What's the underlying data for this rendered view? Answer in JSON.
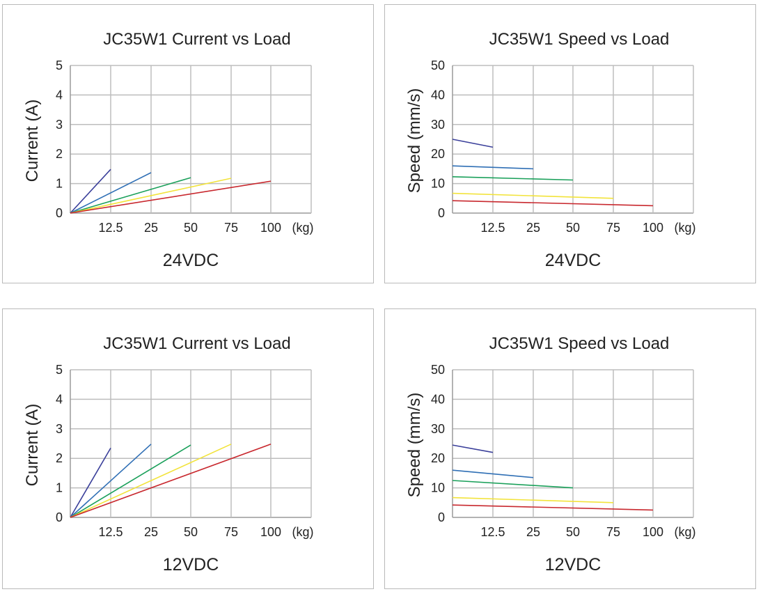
{
  "chart_data": [
    {
      "type": "line",
      "title": "JC35W1 Current vs Load",
      "subtitle": "24VDC",
      "ylabel": "Current (A)",
      "xlabel": "",
      "unit_label": "(kg)",
      "x_tick_labels": [
        "12.5",
        "25",
        "50",
        "75",
        "100"
      ],
      "y_ticks": [
        0,
        1,
        2,
        3,
        4,
        5
      ],
      "ylim": [
        0,
        5
      ],
      "series": [
        {
          "name": "12.5 kg",
          "color": "#3a3f9a",
          "x": [
            0,
            12.5
          ],
          "y": [
            0,
            1.48
          ]
        },
        {
          "name": "25 kg",
          "color": "#2f6fb5",
          "x": [
            0,
            25
          ],
          "y": [
            0,
            1.37
          ]
        },
        {
          "name": "50 kg",
          "color": "#1aa05a",
          "x": [
            0,
            50
          ],
          "y": [
            0,
            1.2
          ]
        },
        {
          "name": "75 kg",
          "color": "#f2e33a",
          "x": [
            0,
            75
          ],
          "y": [
            0,
            1.18
          ]
        },
        {
          "name": "100 kg",
          "color": "#c8282e",
          "x": [
            0,
            100
          ],
          "y": [
            0,
            1.08
          ]
        }
      ]
    },
    {
      "type": "line",
      "title": "JC35W1 Speed vs Load",
      "subtitle": "24VDC",
      "ylabel": "Speed (mm/s)",
      "xlabel": "",
      "unit_label": "(kg)",
      "x_tick_labels": [
        "12.5",
        "25",
        "50",
        "75",
        "100"
      ],
      "y_ticks": [
        0,
        10,
        20,
        30,
        40,
        50
      ],
      "ylim": [
        0,
        50
      ],
      "series": [
        {
          "name": "12.5 kg",
          "color": "#3a3f9a",
          "x": [
            0,
            12.5
          ],
          "y": [
            25,
            22.3
          ]
        },
        {
          "name": "25 kg",
          "color": "#2f6fb5",
          "x": [
            0,
            25
          ],
          "y": [
            16,
            15
          ]
        },
        {
          "name": "50 kg",
          "color": "#1aa05a",
          "x": [
            0,
            50
          ],
          "y": [
            12.3,
            11.2
          ]
        },
        {
          "name": "75 kg",
          "color": "#f2e33a",
          "x": [
            0,
            75
          ],
          "y": [
            6.7,
            5
          ]
        },
        {
          "name": "100 kg",
          "color": "#c8282e",
          "x": [
            0,
            100
          ],
          "y": [
            4.2,
            2.5
          ]
        }
      ]
    },
    {
      "type": "line",
      "title": "JC35W1 Current vs Load",
      "subtitle": "12VDC",
      "ylabel": "Current (A)",
      "xlabel": "",
      "unit_label": "(kg)",
      "x_tick_labels": [
        "12.5",
        "25",
        "50",
        "75",
        "100"
      ],
      "y_ticks": [
        0,
        1,
        2,
        3,
        4,
        5
      ],
      "ylim": [
        0,
        5
      ],
      "series": [
        {
          "name": "12.5 kg",
          "color": "#3a3f9a",
          "x": [
            0,
            12.5
          ],
          "y": [
            0,
            2.35
          ]
        },
        {
          "name": "25 kg",
          "color": "#2f6fb5",
          "x": [
            0,
            25
          ],
          "y": [
            0,
            2.48
          ]
        },
        {
          "name": "50 kg",
          "color": "#1aa05a",
          "x": [
            0,
            50
          ],
          "y": [
            0,
            2.45
          ]
        },
        {
          "name": "75 kg",
          "color": "#f2e33a",
          "x": [
            0,
            75
          ],
          "y": [
            0,
            2.48
          ]
        },
        {
          "name": "100 kg",
          "color": "#c8282e",
          "x": [
            0,
            100
          ],
          "y": [
            0,
            2.48
          ]
        }
      ]
    },
    {
      "type": "line",
      "title": "JC35W1 Speed vs Load",
      "subtitle": "12VDC",
      "ylabel": "Speed (mm/s)",
      "xlabel": "",
      "unit_label": "(kg)",
      "x_tick_labels": [
        "12.5",
        "25",
        "50",
        "75",
        "100"
      ],
      "y_ticks": [
        0,
        10,
        20,
        30,
        40,
        50
      ],
      "ylim": [
        0,
        50
      ],
      "series": [
        {
          "name": "12.5 kg",
          "color": "#3a3f9a",
          "x": [
            0,
            12.5
          ],
          "y": [
            24.5,
            22
          ]
        },
        {
          "name": "25 kg",
          "color": "#2f6fb5",
          "x": [
            0,
            25
          ],
          "y": [
            16,
            13.5
          ]
        },
        {
          "name": "50 kg",
          "color": "#1aa05a",
          "x": [
            0,
            50
          ],
          "y": [
            12.5,
            10
          ]
        },
        {
          "name": "75 kg",
          "color": "#f2e33a",
          "x": [
            0,
            75
          ],
          "y": [
            6.7,
            5
          ]
        },
        {
          "name": "100 kg",
          "color": "#c8282e",
          "x": [
            0,
            100
          ],
          "y": [
            4.2,
            2.5
          ]
        }
      ]
    }
  ]
}
